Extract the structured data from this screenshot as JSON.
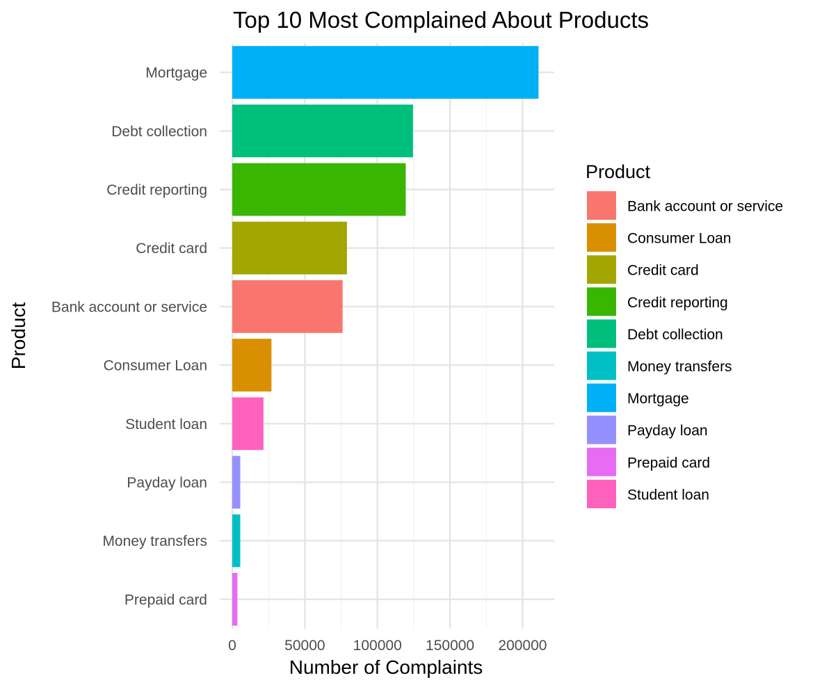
{
  "chart_data": {
    "type": "bar",
    "orientation": "horizontal",
    "title": "Top 10 Most Complained About Products",
    "xlabel": "Number of Complaints",
    "ylabel": "Product",
    "xlim": [
      0,
      220000
    ],
    "x_ticks": [
      0,
      50000,
      100000,
      150000,
      200000
    ],
    "x_tick_labels": [
      "0",
      "50000",
      "100000",
      "150000",
      "200000"
    ],
    "grid": true,
    "legend_position": "right",
    "legend_title": "Product",
    "categories": [
      "Mortgage",
      "Debt collection",
      "Credit reporting",
      "Credit card",
      "Bank account or service",
      "Consumer Loan",
      "Student loan",
      "Payday loan",
      "Money transfers",
      "Prepaid card"
    ],
    "values": [
      211000,
      124500,
      119500,
      79000,
      76000,
      27000,
      21500,
      5500,
      5500,
      3500
    ],
    "colors": {
      "Bank account or service": "#F8766D",
      "Consumer Loan": "#D89000",
      "Credit card": "#A3A500",
      "Credit reporting": "#39B600",
      "Debt collection": "#00BF7D",
      "Money transfers": "#00BFC4",
      "Mortgage": "#00B0F6",
      "Payday loan": "#9590FF",
      "Prepaid card": "#E76BF3",
      "Student loan": "#FF62BC"
    },
    "legend_items": [
      "Bank account or service",
      "Consumer Loan",
      "Credit card",
      "Credit reporting",
      "Debt collection",
      "Money transfers",
      "Mortgage",
      "Payday loan",
      "Prepaid card",
      "Student loan"
    ]
  }
}
